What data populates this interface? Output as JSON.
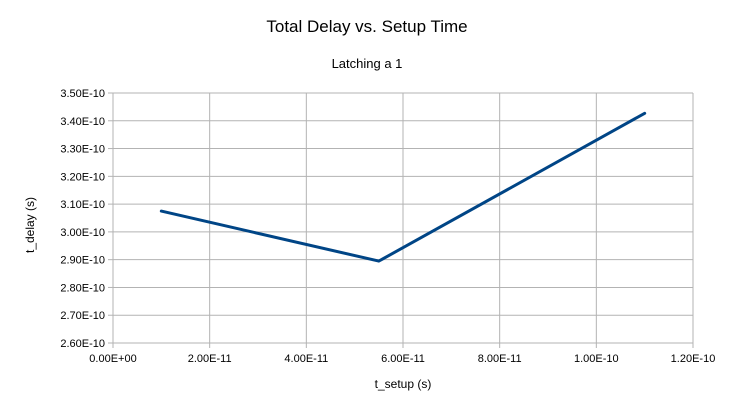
{
  "chart_data": {
    "type": "line",
    "title": "Total Delay vs. Setup Time",
    "subtitle": "Latching a 1",
    "xlabel": "t_setup (s)",
    "ylabel": "t_delay (s)",
    "xlim": [
      0,
      1.2e-10
    ],
    "ylim": [
      2.6e-10,
      3.5e-10
    ],
    "x_ticks": [
      0,
      2e-11,
      4e-11,
      6e-11,
      8e-11,
      1e-10,
      1.2e-10
    ],
    "x_tick_labels": [
      "0.00E+00",
      "2.00E-11",
      "4.00E-11",
      "6.00E-11",
      "8.00E-11",
      "1.00E-10",
      "1.20E-10"
    ],
    "y_ticks": [
      2.6e-10,
      2.7e-10,
      2.8e-10,
      2.9e-10,
      3e-10,
      3.1e-10,
      3.2e-10,
      3.3e-10,
      3.4e-10,
      3.5e-10
    ],
    "y_tick_labels": [
      "2.60E-10",
      "2.70E-10",
      "2.80E-10",
      "2.90E-10",
      "3.00E-10",
      "3.10E-10",
      "3.20E-10",
      "3.30E-10",
      "3.40E-10",
      "3.50E-10"
    ],
    "grid": true,
    "legend": "none",
    "series": [
      {
        "color": "#004586",
        "x": [
          1e-11,
          5.5e-11,
          1.1e-10
        ],
        "y": [
          3.075e-10,
          2.895e-10,
          3.427e-10
        ]
      }
    ]
  }
}
